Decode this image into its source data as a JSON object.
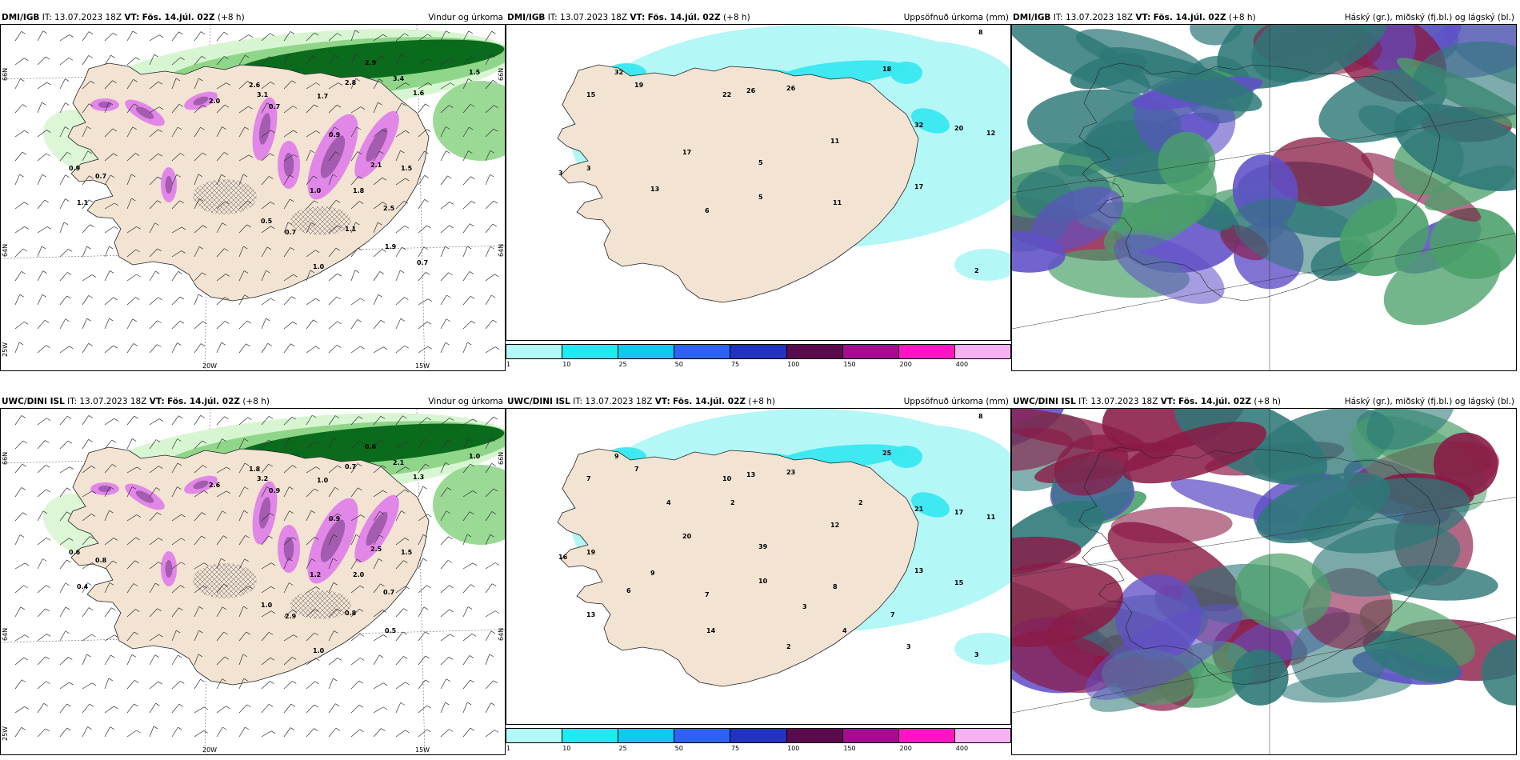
{
  "colors": {
    "land": "#f2e3d3",
    "wind_light": "#d8f5d2",
    "wind_mid": "#8fd68a",
    "wind_dark": "#0b6b1c",
    "precip_purple": "#e07fe8",
    "precip_dark": "#7a3f8a",
    "sea_precip": "#b3f7f7",
    "precip_cyan": "#38e8f0",
    "cloud_teal": "#2e7878",
    "cloud_purple": "#6050c8",
    "cloud_red": "#8a1a46",
    "cloud_green": "#4aa06a"
  },
  "panels": [
    {
      "model": "DMI/IGB",
      "it_label": "IT:",
      "it_value": "13.07.2023 18Z",
      "vt_label": "VT:",
      "vt_value": "Fös. 14.júl. 02Z",
      "lead": "(+8 h)",
      "product": "Vindur og úrkoma",
      "lat_labels": [
        "66N",
        "64N",
        "25W"
      ],
      "lon_labels": [
        "20W",
        "15W"
      ],
      "right_labels": [
        "66N",
        "64N"
      ],
      "values": [
        "2.9",
        "3.4",
        "1.6",
        "2.8",
        "3.1",
        "2.0",
        "2.6",
        "1.7",
        "0.7",
        "1.5",
        "0.9",
        "0.7",
        "1.1",
        "2.1",
        "1.5",
        "1.8",
        "2.5",
        "1.0",
        "0.7",
        "1.9",
        "0.9",
        "1.1",
        "0.5",
        "1.0",
        "0.7"
      ]
    },
    {
      "model": "DMI/IGB",
      "it_label": "IT:",
      "it_value": "13.07.2023 18Z",
      "vt_label": "VT:",
      "vt_value": "Fös. 14.júl. 02Z",
      "lead": "(+8 h)",
      "product": "Uppsöfnuð úrkoma (mm)",
      "values": [
        "8",
        "32",
        "19",
        "15",
        "22",
        "26",
        "26",
        "18",
        "32",
        "20",
        "12",
        "17",
        "5",
        "11",
        "3",
        "3",
        "13",
        "6",
        "5",
        "11",
        "17",
        "2"
      ],
      "colorbar": {
        "labels": [
          "1",
          "10",
          "25",
          "50",
          "75",
          "100",
          "150",
          "200",
          "400"
        ],
        "colors": [
          "#b3f7f7",
          "#22e8ef",
          "#13c7ee",
          "#2e62f0",
          "#2133bf",
          "#5c0a4e",
          "#a30d91",
          "#ff16c3",
          "#f6b2f2"
        ]
      }
    },
    {
      "model": "DMI/IGB",
      "it_label": "IT:",
      "it_value": "13.07.2023 18Z",
      "vt_label": "VT:",
      "vt_value": "Fös. 14.júl. 02Z",
      "lead": "(+8 h)",
      "product": "Háský (gr.), miðský (fj.bl.) og lágský (bl.)"
    },
    {
      "model": "UWC/DINI ISL",
      "it_label": "IT:",
      "it_value": "13.07.2023 18Z",
      "vt_label": "VT:",
      "vt_value": "Fös. 14.júl. 02Z",
      "lead": "(+8 h)",
      "product": "Vindur og úrkoma",
      "lat_labels": [
        "66N",
        "64N",
        "25W"
      ],
      "lon_labels": [
        "20W",
        "15W"
      ],
      "right_labels": [
        "66N",
        "64N"
      ],
      "values": [
        "0.6",
        "2.1",
        "1.3",
        "0.7",
        "3.2",
        "2.6",
        "1.8",
        "1.0",
        "0.9",
        "1.0",
        "0.6",
        "0.8",
        "0.4",
        "2.5",
        "1.5",
        "2.0",
        "0.7",
        "1.2",
        "2.9",
        "0.5",
        "0.9",
        "0.8",
        "1.0",
        "1.0"
      ]
    },
    {
      "model": "UWC/DINI ISL",
      "it_label": "IT:",
      "it_value": "13.07.2023 18Z",
      "vt_label": "VT:",
      "vt_value": "Fös. 14.júl. 02Z",
      "lead": "(+8 h)",
      "product": "Uppsöfnuð úrkoma (mm)",
      "values": [
        "8",
        "9",
        "7",
        "7",
        "10",
        "13",
        "23",
        "25",
        "21",
        "17",
        "11",
        "20",
        "39",
        "12",
        "16",
        "19",
        "9",
        "7",
        "10",
        "8",
        "13",
        "3",
        "2",
        "3",
        "2",
        "4",
        "13",
        "2",
        "7",
        "15",
        "14",
        "6",
        "4",
        "3"
      ],
      "colorbar": {
        "labels": [
          "1",
          "10",
          "25",
          "50",
          "75",
          "100",
          "150",
          "200",
          "400"
        ],
        "colors": [
          "#b3f7f7",
          "#22e8ef",
          "#13c7ee",
          "#2e62f0",
          "#2133bf",
          "#5c0a4e",
          "#a30d91",
          "#ff16c3",
          "#f6b2f2"
        ]
      }
    },
    {
      "model": "UWC/DINI ISL",
      "it_label": "IT:",
      "it_value": "13.07.2023 18Z",
      "vt_label": "VT:",
      "vt_value": "Fös. 14.júl. 02Z",
      "lead": "(+8 h)",
      "product": "Háský (gr.), miðský (fj.bl.) og lágský (bl.)"
    }
  ]
}
